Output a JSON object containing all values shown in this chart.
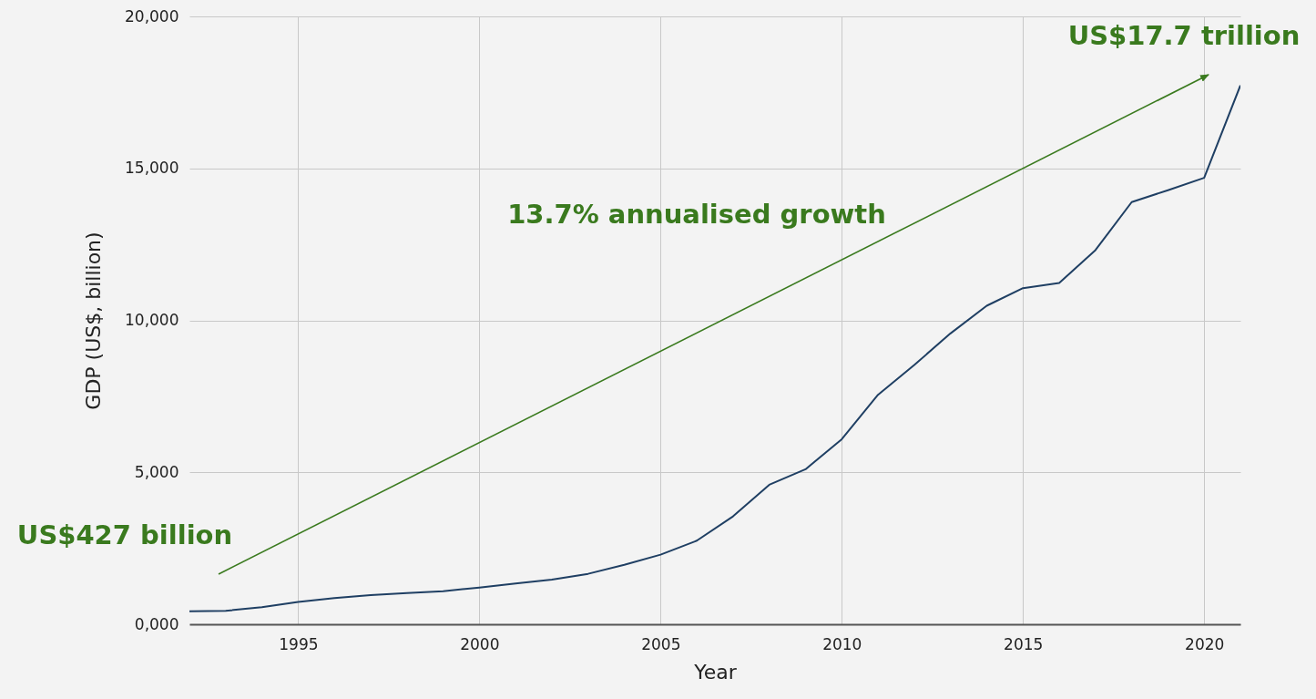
{
  "chart_data": {
    "type": "line",
    "xlabel": "Year",
    "ylabel": "GDP (US$, billion)",
    "annotations": [
      "US$427 billion",
      "13.7% annualised growth",
      "US$17.7 trillion"
    ],
    "x": [
      1992,
      1993,
      1994,
      1995,
      1996,
      1997,
      1998,
      1999,
      2000,
      2001,
      2002,
      2003,
      2004,
      2005,
      2006,
      2007,
      2008,
      2009,
      2010,
      2011,
      2012,
      2013,
      2014,
      2015,
      2016,
      2017,
      2018,
      2019,
      2020,
      2021
    ],
    "series": [
      {
        "color": "#1f3f63",
        "values": [
          427,
          444,
          560,
          735,
          860,
          960,
          1030,
          1090,
          1210,
          1340,
          1470,
          1660,
          1955,
          2290,
          2750,
          3550,
          4590,
          5100,
          6090,
          7550,
          8530,
          9570,
          10480,
          11060,
          11230,
          12310,
          13890,
          14280,
          14690,
          17730
        ]
      }
    ],
    "xlim": [
      1992,
      2021
    ],
    "xticks": [
      1995,
      2000,
      2005,
      2010,
      2015,
      2020
    ],
    "ylim": [
      0,
      20000
    ],
    "yticks": [
      {
        "value": 0,
        "label": "0,000"
      },
      {
        "value": 5000,
        "label": "5,000"
      },
      {
        "value": 10000,
        "label": "10,000"
      },
      {
        "value": 15000,
        "label": "15,000"
      },
      {
        "value": 20000,
        "label": "20,000"
      }
    ],
    "grid": true,
    "marker": "none",
    "line_style": "solid"
  }
}
